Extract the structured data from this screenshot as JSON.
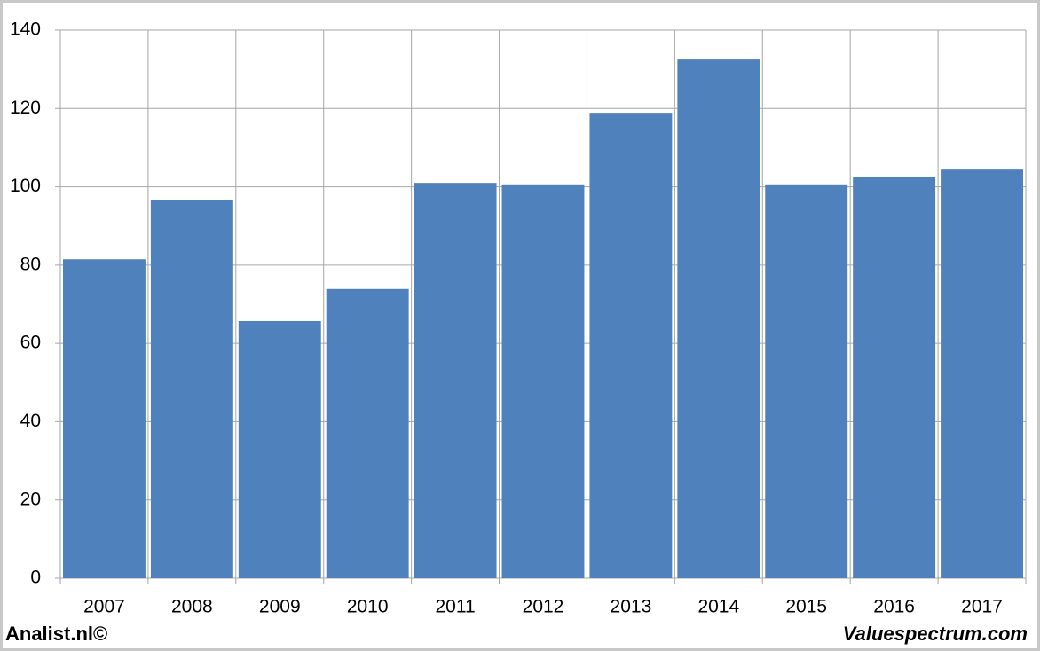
{
  "chart_data": {
    "type": "bar",
    "categories": [
      "2007",
      "2008",
      "2009",
      "2010",
      "2011",
      "2012",
      "2013",
      "2014",
      "2015",
      "2016",
      "2017"
    ],
    "values": [
      81.5,
      96.7,
      65.7,
      73.9,
      101,
      100.4,
      118.9,
      132.5,
      100.4,
      102.4,
      104.4
    ],
    "color": "#4f81bd",
    "ylim": [
      0,
      140
    ],
    "yticks": [
      0,
      20,
      40,
      60,
      80,
      100,
      120,
      140
    ],
    "grid": true
  },
  "footer": {
    "left": "Analist.nl©",
    "right": "Valuespectrum.com"
  }
}
